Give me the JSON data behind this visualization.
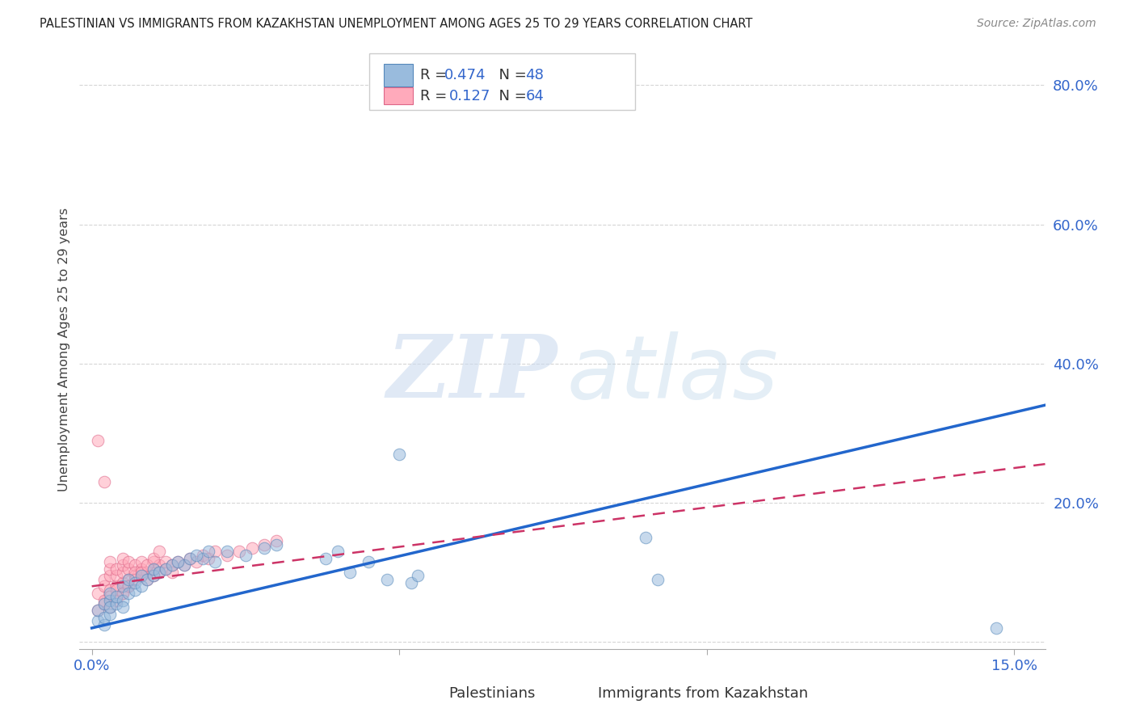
{
  "title": "PALESTINIAN VS IMMIGRANTS FROM KAZAKHSTAN UNEMPLOYMENT AMONG AGES 25 TO 29 YEARS CORRELATION CHART",
  "source": "Source: ZipAtlas.com",
  "ylabel": "Unemployment Among Ages 25 to 29 years",
  "watermark_zip": "ZIP",
  "watermark_atlas": "atlas",
  "xlim": [
    -0.002,
    0.155
  ],
  "ylim": [
    -0.01,
    0.85
  ],
  "xticks": [
    0.0,
    0.05,
    0.1,
    0.15
  ],
  "xticklabels": [
    "0.0%",
    "",
    "",
    "15.0%"
  ],
  "yticks": [
    0.0,
    0.2,
    0.4,
    0.6,
    0.8
  ],
  "yticklabels": [
    "",
    "20.0%",
    "40.0%",
    "60.0%",
    "80.0%"
  ],
  "blue_color": "#99bbdd",
  "blue_edge": "#5588bb",
  "pink_color": "#ffaabb",
  "pink_edge": "#dd6688",
  "blue_line_color": "#2266cc",
  "pink_line_color": "#cc3366",
  "tick_label_color": "#3366cc",
  "legend_text_color": "#333333",
  "legend_value_color": "#3366cc",
  "legend_box_color": "#dddddd",
  "source_color": "#888888"
}
